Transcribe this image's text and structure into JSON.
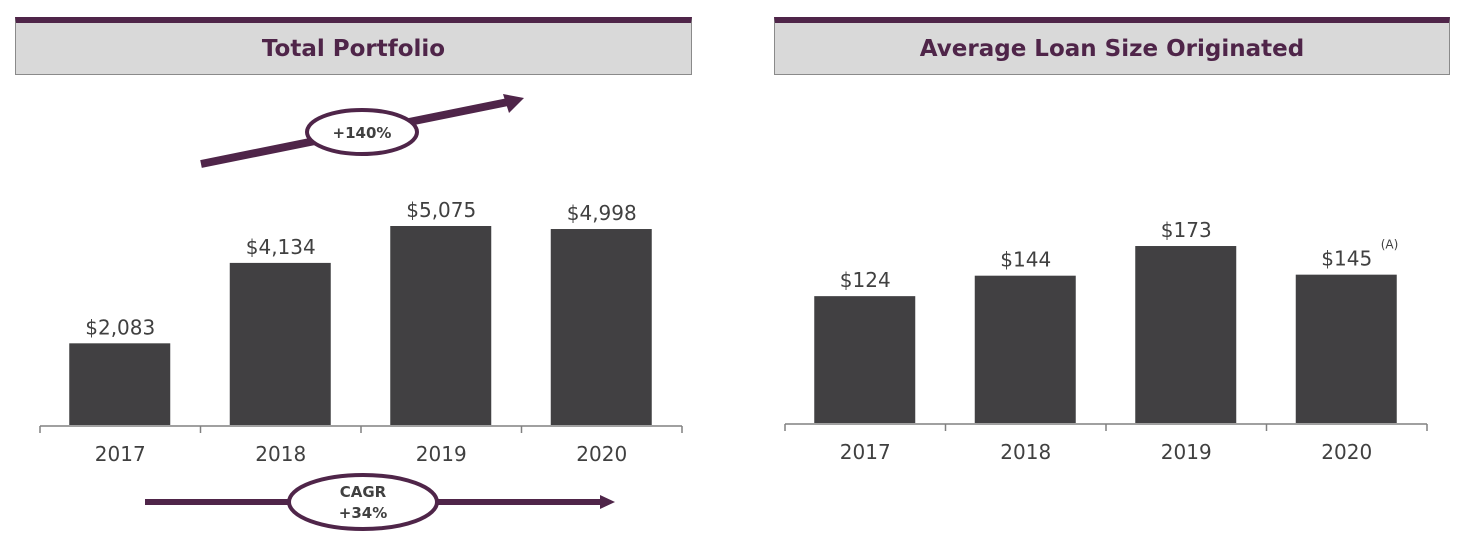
{
  "colors": {
    "accent": "#4f2549",
    "bar": "#414042",
    "header_bg": "#d9d9d9"
  },
  "chart_data": [
    {
      "type": "bar",
      "title": "Total Portfolio",
      "categories": [
        "2017",
        "2018",
        "2019",
        "2020"
      ],
      "values": [
        2083,
        4134,
        5075,
        4998
      ],
      "labels": [
        "$2,083",
        "$4,134",
        "$5,075",
        "$4,998"
      ],
      "annotations": {
        "growth": "+140%",
        "cagr_line1": "CAGR",
        "cagr_line2": "+34%"
      }
    },
    {
      "type": "bar",
      "title": "Average Loan Size Originated",
      "categories": [
        "2017",
        "2018",
        "2019",
        "2020"
      ],
      "values": [
        124,
        144,
        173,
        145
      ],
      "labels": [
        "$124",
        "$144",
        "$173",
        "$145"
      ],
      "footnote_marker": "(A)"
    }
  ]
}
